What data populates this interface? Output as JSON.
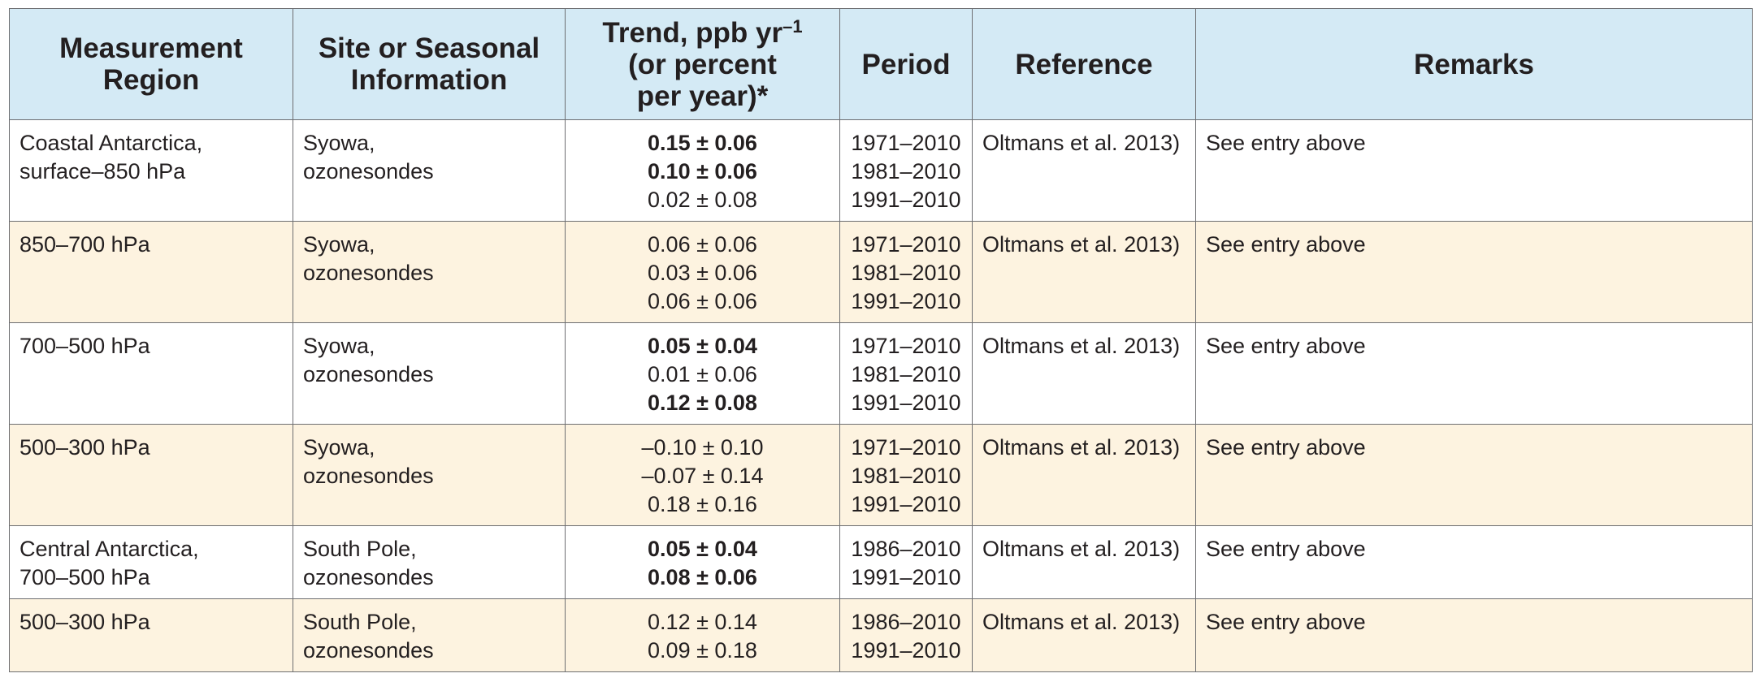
{
  "headers": {
    "region": "Measurement Region",
    "site": "Site or Seasonal Information",
    "trend_line1": "Trend, ppb yr",
    "trend_sup": "–1",
    "trend_line2": "(or percent",
    "trend_line3": "per year)*",
    "period": "Period",
    "reference": "Reference",
    "remarks": "Remarks"
  },
  "rows": [
    {
      "region": [
        "Coastal Antarctica,",
        "surface–850 hPa"
      ],
      "site": [
        "Syowa,",
        "ozonesondes"
      ],
      "trends": [
        {
          "text": "0.15 ± 0.06",
          "bold": true
        },
        {
          "text": "0.10 ± 0.06",
          "bold": true
        },
        {
          "text": "0.02 ± 0.08",
          "bold": false
        }
      ],
      "periods": [
        "1971–2010",
        "1981–2010",
        "1991–2010"
      ],
      "reference": "Oltmans et al. 2013)",
      "remarks": "See entry above"
    },
    {
      "region": [
        "850–700 hPa"
      ],
      "site": [
        "Syowa,",
        "ozonesondes"
      ],
      "trends": [
        {
          "text": "0.06 ± 0.06",
          "bold": false
        },
        {
          "text": "0.03 ± 0.06",
          "bold": false
        },
        {
          "text": "0.06 ± 0.06",
          "bold": false
        }
      ],
      "periods": [
        "1971–2010",
        "1981–2010",
        "1991–2010"
      ],
      "reference": "Oltmans et al. 2013)",
      "remarks": "See entry above"
    },
    {
      "region": [
        "700–500 hPa"
      ],
      "site": [
        "Syowa,",
        "ozonesondes"
      ],
      "trends": [
        {
          "text": "0.05 ± 0.04",
          "bold": true
        },
        {
          "text": "0.01 ± 0.06",
          "bold": false
        },
        {
          "text": "0.12 ± 0.08",
          "bold": true
        }
      ],
      "periods": [
        "1971–2010",
        "1981–2010",
        "1991–2010"
      ],
      "reference": "Oltmans et al. 2013)",
      "remarks": "See entry above"
    },
    {
      "region": [
        "500–300 hPa"
      ],
      "site": [
        "Syowa,",
        "ozonesondes"
      ],
      "trends": [
        {
          "text": "–0.10 ± 0.10",
          "bold": false
        },
        {
          "text": "–0.07 ± 0.14",
          "bold": false
        },
        {
          "text": "0.18 ± 0.16",
          "bold": false
        }
      ],
      "periods": [
        "1971–2010",
        "1981–2010",
        "1991–2010"
      ],
      "reference": "Oltmans et al. 2013)",
      "remarks": "See entry above"
    },
    {
      "region": [
        "Central Antarctica,",
        "700–500 hPa"
      ],
      "site": [
        "South Pole,",
        "ozonesondes"
      ],
      "trends": [
        {
          "text": "0.05 ± 0.04",
          "bold": true
        },
        {
          "text": "0.08 ± 0.06",
          "bold": true
        }
      ],
      "periods": [
        "1986–2010",
        "1991–2010"
      ],
      "reference": "Oltmans et al. 2013)",
      "remarks": "See entry above"
    },
    {
      "region": [
        "500–300 hPa"
      ],
      "site": [
        "South Pole,",
        "ozonesondes"
      ],
      "trends": [
        {
          "text": "0.12 ± 0.14",
          "bold": false
        },
        {
          "text": "0.09 ± 0.18",
          "bold": false
        }
      ],
      "periods": [
        "1986–2010",
        "1991–2010"
      ],
      "reference": "Oltmans et al. 2013)",
      "remarks": "See entry above"
    }
  ],
  "colors": {
    "header_bg": "#d4eaf5",
    "stripe_bg": "#fdf3e0",
    "border": "#6d6e71",
    "text": "#231f20"
  }
}
